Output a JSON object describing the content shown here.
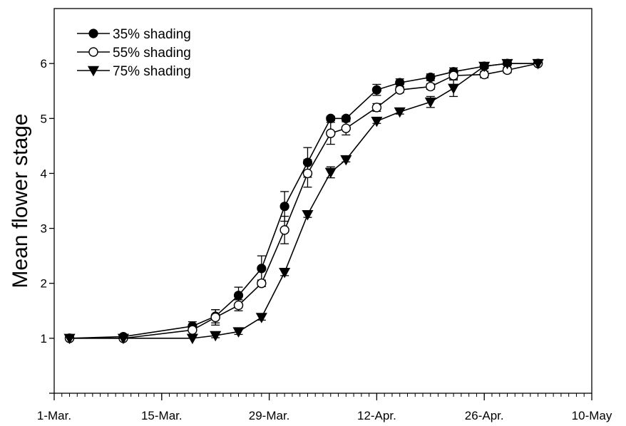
{
  "chart_data": {
    "type": "line",
    "title": "",
    "xlabel": "",
    "ylabel": "Mean flower stage",
    "x_tick_labels": [
      "1-Mar.",
      "15-Mar.",
      "29-Mar.",
      "12-Apr.",
      "26-Apr.",
      "10-May"
    ],
    "x_ticks": [
      "2020-03-01",
      "2020-03-15",
      "2020-03-29",
      "2020-04-12",
      "2020-04-26",
      "2020-05-10"
    ],
    "xlim": [
      "2020-03-01",
      "2020-05-10"
    ],
    "y_tick_labels": [
      "1",
      "2",
      "3",
      "4",
      "5",
      "6"
    ],
    "y_ticks": [
      1,
      2,
      3,
      4,
      5,
      6
    ],
    "ylim": [
      0,
      7
    ],
    "grid": false,
    "legend_position": "top-left",
    "series": [
      {
        "name": "35% shading",
        "marker": "filled-circle",
        "color": "#000000",
        "points": [
          {
            "x": "2020-03-03",
            "y": 1.0,
            "err": 0.02
          },
          {
            "x": "2020-03-10",
            "y": 1.03,
            "err": 0.03
          },
          {
            "x": "2020-03-19",
            "y": 1.22,
            "err": 0.08
          },
          {
            "x": "2020-03-22",
            "y": 1.4,
            "err": 0.12
          },
          {
            "x": "2020-03-25",
            "y": 1.78,
            "err": 0.15
          },
          {
            "x": "2020-03-28",
            "y": 2.27,
            "err": 0.23
          },
          {
            "x": "2020-03-31",
            "y": 3.4,
            "err": 0.27
          },
          {
            "x": "2020-04-03",
            "y": 4.2,
            "err": 0.27
          },
          {
            "x": "2020-04-06",
            "y": 5.0,
            "err": 0.04
          },
          {
            "x": "2020-04-08",
            "y": 5.0,
            "err": 0.04
          },
          {
            "x": "2020-04-12",
            "y": 5.52,
            "err": 0.1
          },
          {
            "x": "2020-04-15",
            "y": 5.65,
            "err": 0.07
          },
          {
            "x": "2020-04-19",
            "y": 5.75,
            "err": 0.06
          },
          {
            "x": "2020-04-22",
            "y": 5.85,
            "err": 0.07
          },
          {
            "x": "2020-04-26",
            "y": 5.95,
            "err": 0.04
          },
          {
            "x": "2020-04-29",
            "y": 6.0,
            "err": 0.03
          },
          {
            "x": "2020-05-03",
            "y": 6.0,
            "err": 0.02
          }
        ]
      },
      {
        "name": "55% shading",
        "marker": "open-circle",
        "color": "#000000",
        "points": [
          {
            "x": "2020-03-03",
            "y": 1.0,
            "err": 0.02
          },
          {
            "x": "2020-03-10",
            "y": 1.0,
            "err": 0.02
          },
          {
            "x": "2020-03-19",
            "y": 1.15,
            "err": 0.08
          },
          {
            "x": "2020-03-22",
            "y": 1.38,
            "err": 0.14
          },
          {
            "x": "2020-03-25",
            "y": 1.6,
            "err": 0.1
          },
          {
            "x": "2020-03-28",
            "y": 2.0,
            "err": 0.06
          },
          {
            "x": "2020-03-31",
            "y": 2.97,
            "err": 0.25
          },
          {
            "x": "2020-04-03",
            "y": 4.0,
            "err": 0.25
          },
          {
            "x": "2020-04-06",
            "y": 4.73,
            "err": 0.2
          },
          {
            "x": "2020-04-08",
            "y": 4.82,
            "err": 0.12
          },
          {
            "x": "2020-04-12",
            "y": 5.2,
            "err": 0.07
          },
          {
            "x": "2020-04-15",
            "y": 5.52,
            "err": 0.05
          },
          {
            "x": "2020-04-19",
            "y": 5.58,
            "err": 0.05
          },
          {
            "x": "2020-04-22",
            "y": 5.78,
            "err": 0.06
          },
          {
            "x": "2020-04-26",
            "y": 5.8,
            "err": 0.06
          },
          {
            "x": "2020-04-29",
            "y": 5.88,
            "err": 0.05
          },
          {
            "x": "2020-05-03",
            "y": 6.0,
            "err": 0.02
          }
        ]
      },
      {
        "name": "75% shading",
        "marker": "filled-triangle-down",
        "color": "#000000",
        "points": [
          {
            "x": "2020-03-03",
            "y": 1.0,
            "err": 0.02
          },
          {
            "x": "2020-03-10",
            "y": 1.0,
            "err": 0.02
          },
          {
            "x": "2020-03-19",
            "y": 1.0,
            "err": 0.02
          },
          {
            "x": "2020-03-22",
            "y": 1.05,
            "err": 0.04
          },
          {
            "x": "2020-03-25",
            "y": 1.12,
            "err": 0.05
          },
          {
            "x": "2020-03-28",
            "y": 1.38,
            "err": 0.05
          },
          {
            "x": "2020-03-31",
            "y": 2.2,
            "err": 0.06
          },
          {
            "x": "2020-04-03",
            "y": 3.25,
            "err": 0.05
          },
          {
            "x": "2020-04-06",
            "y": 4.02,
            "err": 0.1
          },
          {
            "x": "2020-04-08",
            "y": 4.25,
            "err": 0.04
          },
          {
            "x": "2020-04-12",
            "y": 4.95,
            "err": 0.04
          },
          {
            "x": "2020-04-15",
            "y": 5.12,
            "err": 0.04
          },
          {
            "x": "2020-04-19",
            "y": 5.3,
            "err": 0.1
          },
          {
            "x": "2020-04-22",
            "y": 5.55,
            "err": 0.15
          },
          {
            "x": "2020-04-26",
            "y": 5.95,
            "err": 0.04
          },
          {
            "x": "2020-04-29",
            "y": 6.0,
            "err": 0.02
          },
          {
            "x": "2020-05-03",
            "y": 6.0,
            "err": 0.02
          }
        ]
      }
    ]
  }
}
